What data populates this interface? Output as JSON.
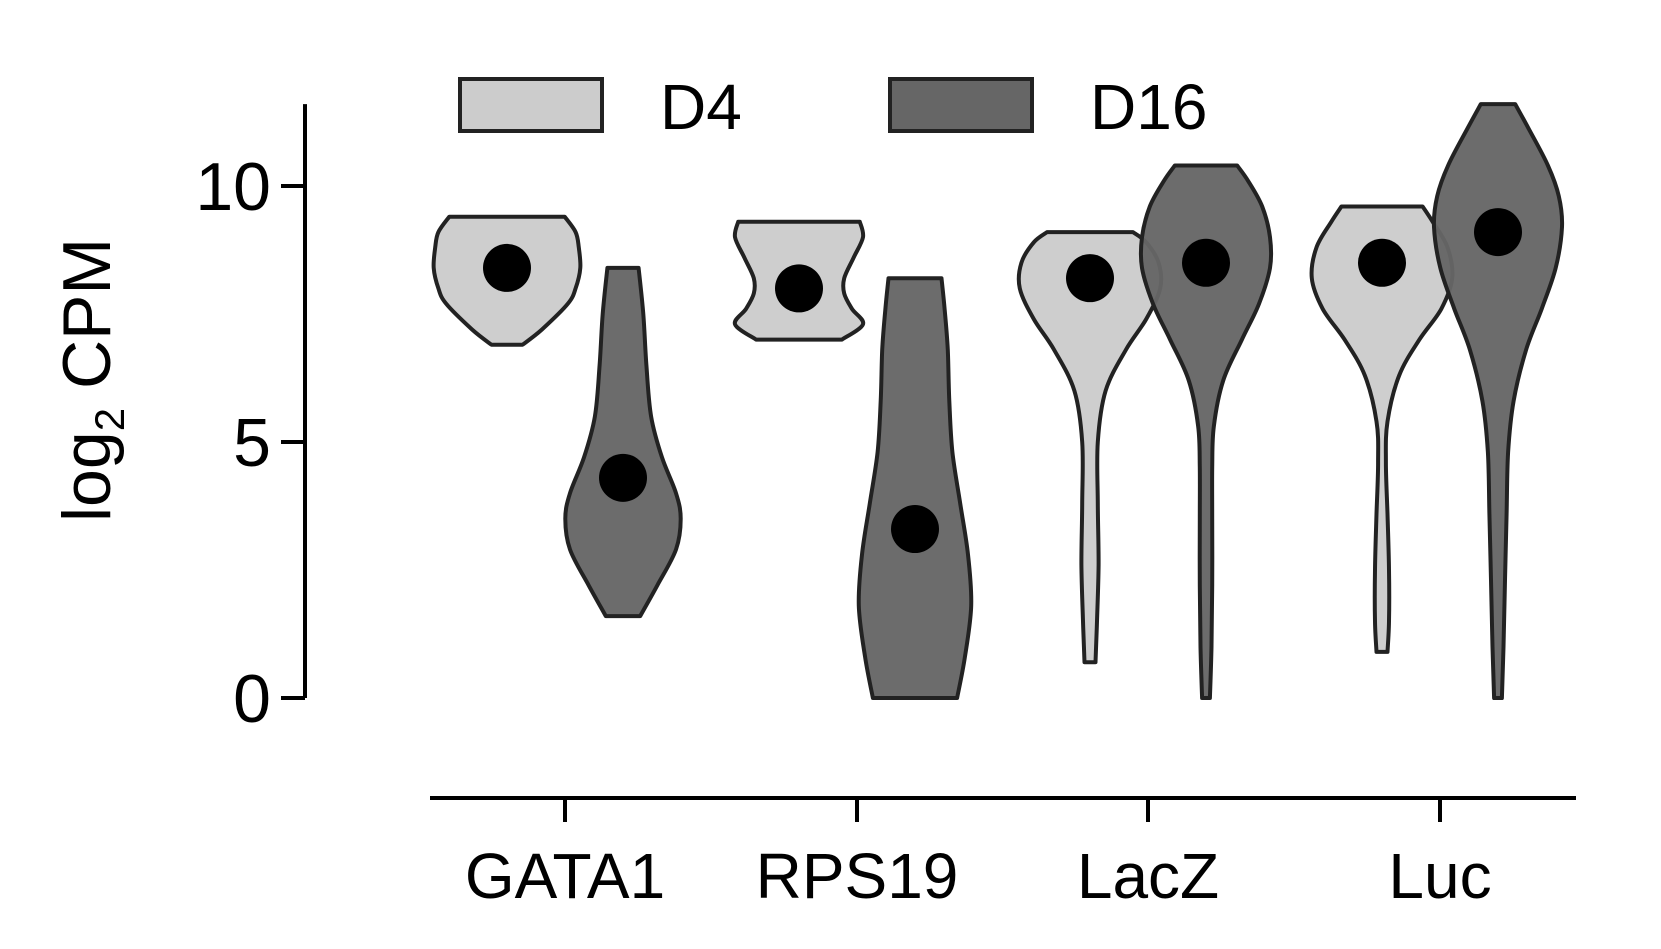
{
  "chart_data": {
    "type": "violin",
    "ylabel": {
      "main": "log",
      "sub": "2",
      "suffix": " CPM"
    },
    "ylim": [
      -1.9,
      11.6
    ],
    "yticks": [
      0,
      5,
      10
    ],
    "categories": [
      "GATA1",
      "RPS19",
      "LacZ",
      "Luc"
    ],
    "grid": false,
    "legend_position": "top",
    "series": [
      {
        "name": "D4",
        "color": "#cccccc",
        "violins": [
          {
            "category": "GATA1",
            "min": 6.9,
            "max": 9.4,
            "center": 8.4,
            "profile": [
              [
                6.9,
                0.2
              ],
              [
                7.2,
                0.45
              ],
              [
                7.7,
                0.78
              ],
              [
                8.0,
                0.88
              ],
              [
                8.4,
                0.94
              ],
              [
                8.8,
                0.92
              ],
              [
                9.1,
                0.88
              ],
              [
                9.4,
                0.74
              ]
            ]
          },
          {
            "category": "RPS19",
            "min": 7.0,
            "max": 9.3,
            "center": 8.0,
            "profile": [
              [
                7.0,
                0.55
              ],
              [
                7.3,
                0.82
              ],
              [
                7.6,
                0.68
              ],
              [
                7.9,
                0.58
              ],
              [
                8.2,
                0.58
              ],
              [
                8.6,
                0.7
              ],
              [
                9.0,
                0.82
              ],
              [
                9.3,
                0.78
              ]
            ]
          },
          {
            "category": "LacZ",
            "min": 0.7,
            "max": 9.1,
            "center": 8.2,
            "profile": [
              [
                0.7,
                0.07
              ],
              [
                1.5,
                0.09
              ],
              [
                2.6,
                0.11
              ],
              [
                3.8,
                0.1
              ],
              [
                5.0,
                0.1
              ],
              [
                6.0,
                0.2
              ],
              [
                6.8,
                0.46
              ],
              [
                7.4,
                0.72
              ],
              [
                8.0,
                0.9
              ],
              [
                8.5,
                0.88
              ],
              [
                8.9,
                0.72
              ],
              [
                9.1,
                0.55
              ]
            ]
          },
          {
            "category": "Luc",
            "min": 0.9,
            "max": 9.6,
            "center": 8.5,
            "profile": [
              [
                0.9,
                0.07
              ],
              [
                1.5,
                0.09
              ],
              [
                2.5,
                0.09
              ],
              [
                3.6,
                0.07
              ],
              [
                4.6,
                0.05
              ],
              [
                5.4,
                0.07
              ],
              [
                6.3,
                0.22
              ],
              [
                7.0,
                0.48
              ],
              [
                7.6,
                0.76
              ],
              [
                8.2,
                0.9
              ],
              [
                8.8,
                0.84
              ],
              [
                9.3,
                0.65
              ],
              [
                9.6,
                0.52
              ]
            ]
          }
        ]
      },
      {
        "name": "D16",
        "color": "#666666",
        "violins": [
          {
            "category": "GATA1",
            "min": 1.6,
            "max": 8.4,
            "center": 4.3,
            "profile": [
              [
                1.6,
                0.22
              ],
              [
                2.2,
                0.44
              ],
              [
                2.9,
                0.68
              ],
              [
                3.5,
                0.74
              ],
              [
                4.0,
                0.68
              ],
              [
                4.7,
                0.5
              ],
              [
                5.5,
                0.36
              ],
              [
                6.5,
                0.3
              ],
              [
                7.5,
                0.26
              ],
              [
                8.4,
                0.2
              ]
            ]
          },
          {
            "category": "RPS19",
            "min": 0.0,
            "max": 8.2,
            "center": 3.3,
            "profile": [
              [
                0.0,
                0.54
              ],
              [
                0.8,
                0.64
              ],
              [
                1.8,
                0.72
              ],
              [
                2.8,
                0.68
              ],
              [
                3.8,
                0.58
              ],
              [
                4.8,
                0.48
              ],
              [
                5.8,
                0.44
              ],
              [
                6.8,
                0.42
              ],
              [
                7.6,
                0.38
              ],
              [
                8.2,
                0.34
              ]
            ]
          },
          {
            "category": "LacZ",
            "min": 0.0,
            "max": 10.4,
            "center": 8.5,
            "profile": [
              [
                0.0,
                0.05
              ],
              [
                1.0,
                0.07
              ],
              [
                2.2,
                0.08
              ],
              [
                3.5,
                0.08
              ],
              [
                4.5,
                0.08
              ],
              [
                5.3,
                0.1
              ],
              [
                6.2,
                0.22
              ],
              [
                7.0,
                0.46
              ],
              [
                7.7,
                0.68
              ],
              [
                8.4,
                0.82
              ],
              [
                9.0,
                0.82
              ],
              [
                9.6,
                0.72
              ],
              [
                10.1,
                0.54
              ],
              [
                10.4,
                0.4
              ]
            ]
          },
          {
            "category": "Luc",
            "min": 0.0,
            "max": 11.6,
            "center": 9.1,
            "profile": [
              [
                0.0,
                0.05
              ],
              [
                1.0,
                0.07
              ],
              [
                2.3,
                0.09
              ],
              [
                3.6,
                0.11
              ],
              [
                4.8,
                0.13
              ],
              [
                5.8,
                0.2
              ],
              [
                6.8,
                0.36
              ],
              [
                7.6,
                0.56
              ],
              [
                8.4,
                0.74
              ],
              [
                9.2,
                0.82
              ],
              [
                9.8,
                0.78
              ],
              [
                10.4,
                0.64
              ],
              [
                11.1,
                0.4
              ],
              [
                11.6,
                0.22
              ]
            ]
          }
        ]
      }
    ]
  }
}
